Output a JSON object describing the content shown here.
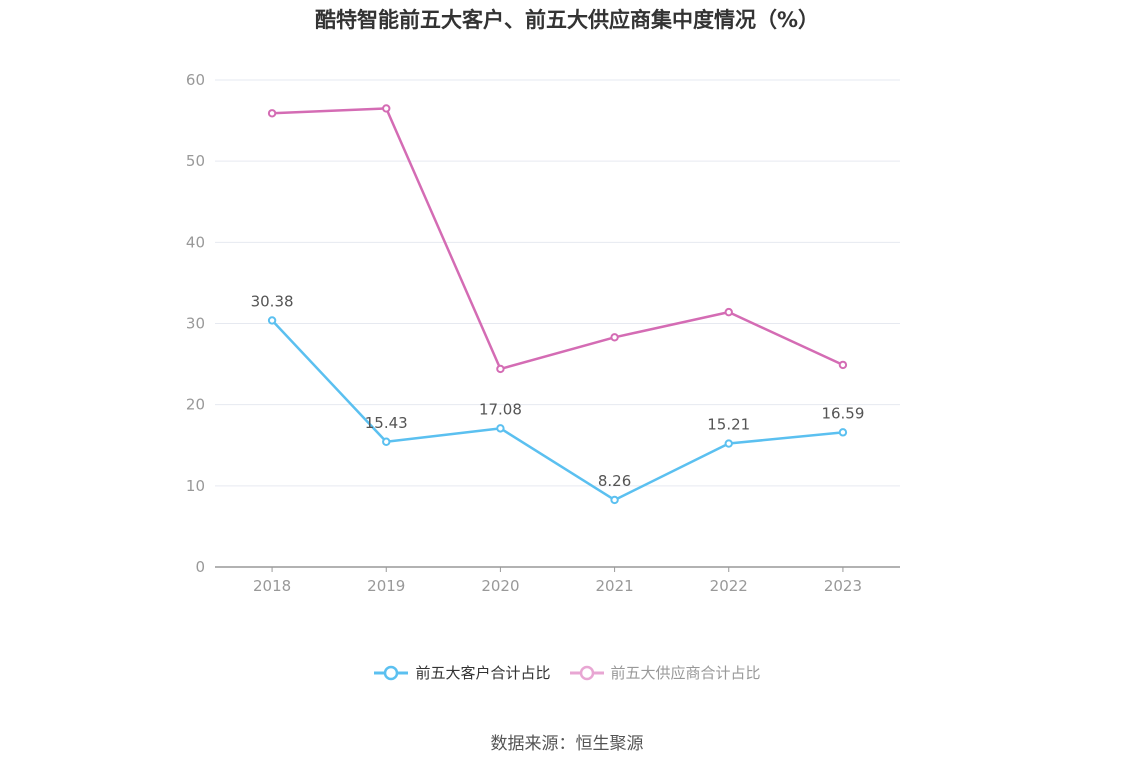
{
  "title": "酷特智能前五大客户、前五大供应商集中度情况（%）",
  "source": "数据来源：恒生聚源",
  "colors": {
    "customers": "#5bc0f0",
    "suppliers": "#d46cb4",
    "suppliers_legend": "#e8a6d3",
    "grid": "#e6e9f0",
    "axis": "#999999",
    "tick_text": "#999999",
    "label_text": "#555555"
  },
  "chart_data": {
    "type": "line",
    "title": "酷特智能前五大客户、前五大供应商集中度情况（%）",
    "x": [
      "2018",
      "2019",
      "2020",
      "2021",
      "2022",
      "2023"
    ],
    "ylim": [
      0,
      60
    ],
    "yticks": [
      0,
      10,
      20,
      30,
      40,
      50,
      60
    ],
    "grid": true,
    "legend_position": "bottom-center",
    "series": [
      {
        "name": "前五大客户合计占比",
        "values": [
          30.38,
          15.43,
          17.08,
          8.26,
          15.21,
          16.59
        ],
        "labels": [
          "30.38",
          "15.43",
          "17.08",
          "8.26",
          "15.21",
          "16.59"
        ]
      },
      {
        "name": "前五大供应商合计占比",
        "values": [
          55.9,
          56.5,
          24.4,
          28.3,
          31.4,
          24.9
        ]
      }
    ]
  }
}
